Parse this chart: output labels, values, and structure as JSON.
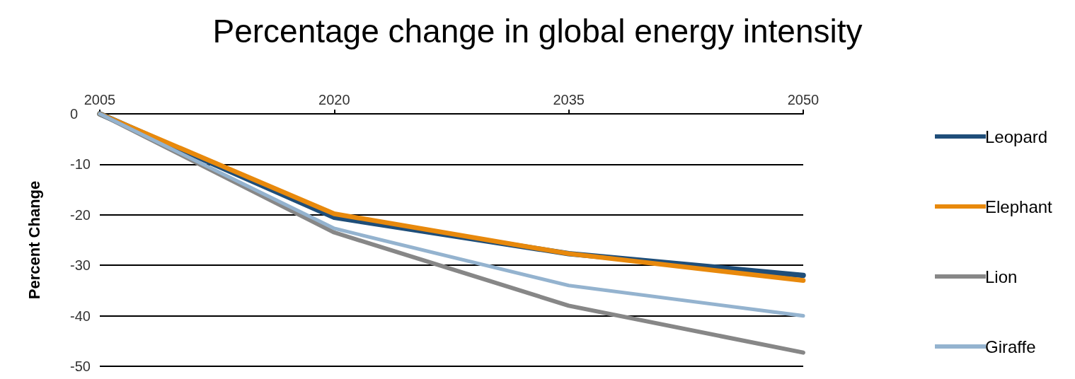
{
  "chart_data": {
    "type": "line",
    "title": "Percentage change in global energy intensity",
    "ylabel": "Percent Change",
    "x": [
      2005,
      2020,
      2035,
      2050
    ],
    "series": [
      {
        "name": "Leopard",
        "color": "#1f4e79",
        "values": [
          0,
          -20.5,
          -27.7,
          -32
        ]
      },
      {
        "name": "Elephant",
        "color": "#e8890c",
        "values": [
          0,
          -19.8,
          -27.7,
          -33
        ]
      },
      {
        "name": "Lion",
        "color": "#878787",
        "values": [
          0,
          -23.5,
          -38,
          -47.3
        ]
      },
      {
        "name": "Giraffe",
        "color": "#94b3cf",
        "values": [
          0,
          -22.7,
          -34,
          -40
        ]
      }
    ],
    "xlim": [
      2005,
      2050
    ],
    "xticks": [
      2005,
      2020,
      2035,
      2050
    ],
    "ylim": [
      -50,
      0
    ],
    "yticks": [
      0,
      -10,
      -20,
      -30,
      -40,
      -50
    ],
    "grid": "y",
    "legend": "right",
    "marker": "none",
    "line_style": "solid"
  }
}
